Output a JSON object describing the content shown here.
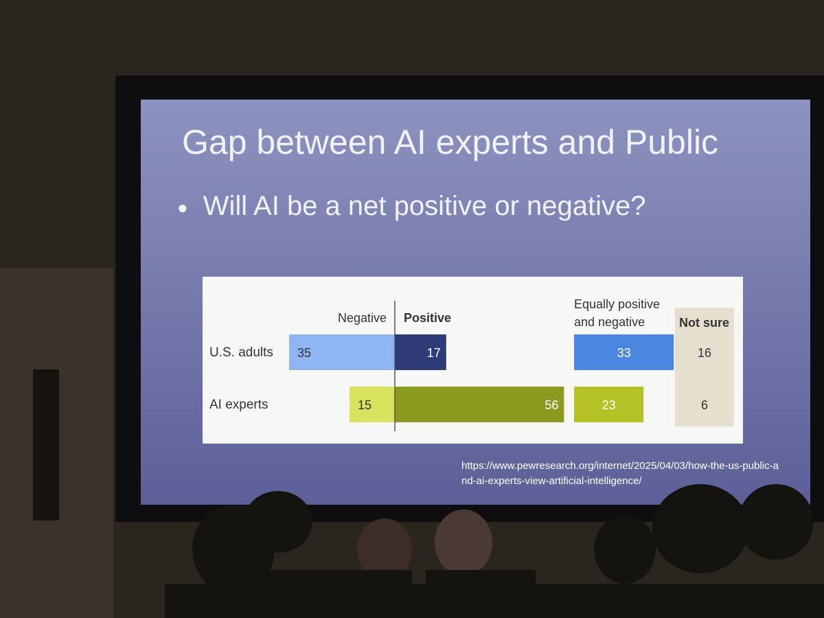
{
  "chart_data": {
    "type": "diverging-bar",
    "title": "Gap between AI experts and Public",
    "subtitle": "Will AI be a net positive or negative?",
    "categories": [
      "U.S. adults",
      "AI experts"
    ],
    "series": [
      {
        "name": "Negative",
        "colors": [
          "#8fb6f2",
          "#d9e35e"
        ],
        "values": [
          35,
          15
        ]
      },
      {
        "name": "Positive",
        "colors": [
          "#2f3a78",
          "#8d9a20"
        ],
        "values": [
          17,
          56
        ]
      },
      {
        "name": "Equally positive and negative",
        "colors": [
          "#4b86e2",
          "#b4c226"
        ],
        "values": [
          33,
          23
        ]
      },
      {
        "name": "Not sure",
        "values": [
          16,
          6
        ]
      }
    ],
    "source": "https://www.pewresearch.org/internet/2025/04/03/how-the-us-public-and-ai-experts-view-artificial-intelligence/"
  }
}
